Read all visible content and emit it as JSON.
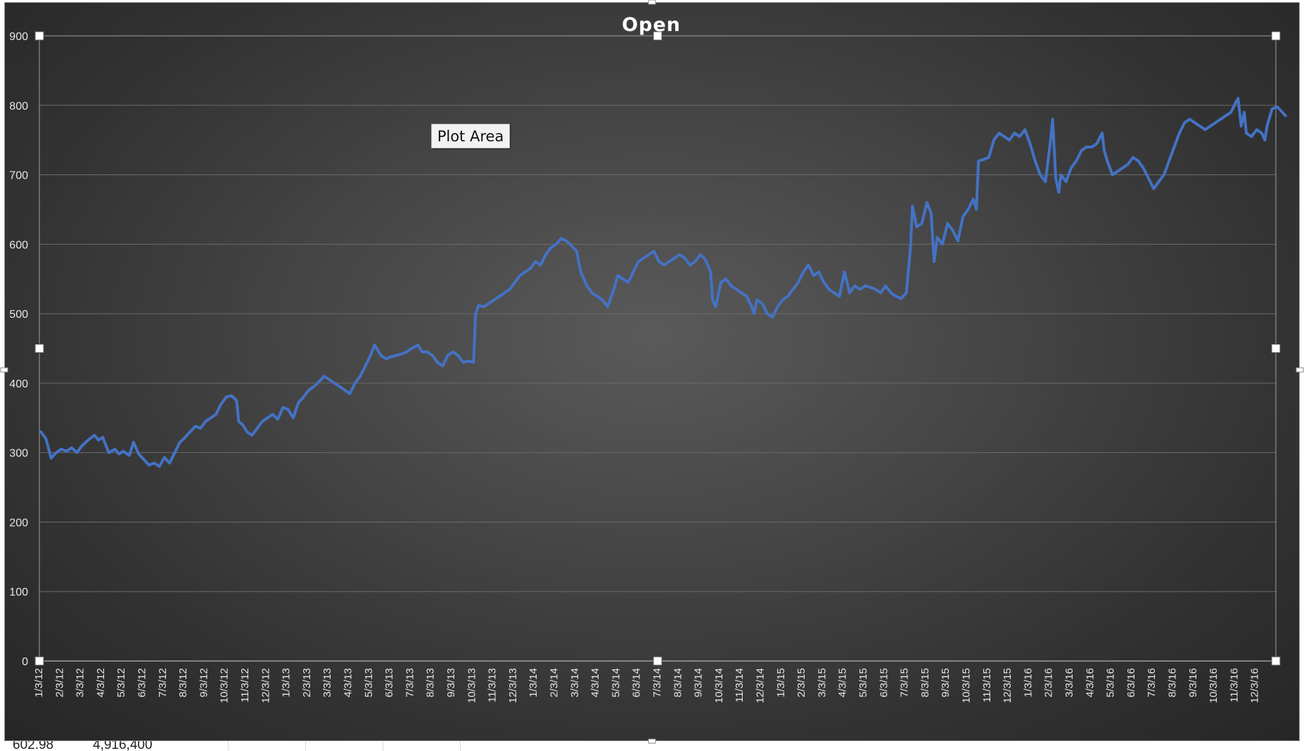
{
  "spreadsheet_peek": {
    "cell_a": "602.98",
    "cell_b": "4,916,400"
  },
  "tooltip": {
    "label": "Plot Area"
  },
  "colors": {
    "line": "#4472c4",
    "background": "#3f3f3f",
    "grid": "#6b6b6b",
    "text": "#ffffff",
    "handle": "#ffffff"
  },
  "chart_data": {
    "type": "line",
    "title": "Open",
    "xlabel": "",
    "ylabel": "",
    "ylim": [
      0,
      900
    ],
    "yticks": [
      0,
      100,
      200,
      300,
      400,
      500,
      600,
      700,
      800,
      900
    ],
    "grid": true,
    "legend": "none",
    "xticks": [
      "1/3/12",
      "2/3/12",
      "3/3/12",
      "4/3/12",
      "5/3/12",
      "6/3/12",
      "7/3/12",
      "8/3/12",
      "9/3/12",
      "10/3/12",
      "11/3/12",
      "12/3/12",
      "1/3/13",
      "2/3/13",
      "3/3/13",
      "4/3/13",
      "5/3/13",
      "6/3/13",
      "7/3/13",
      "8/3/13",
      "9/3/13",
      "10/3/13",
      "11/3/13",
      "12/3/13",
      "1/3/14",
      "2/3/14",
      "3/3/14",
      "4/3/14",
      "5/3/14",
      "6/3/14",
      "7/3/14",
      "8/3/14",
      "9/3/14",
      "10/3/14",
      "11/3/14",
      "12/3/14",
      "1/3/15",
      "2/3/15",
      "3/3/15",
      "4/3/15",
      "5/3/15",
      "6/3/15",
      "7/3/15",
      "8/3/15",
      "9/3/15",
      "10/3/15",
      "11/3/15",
      "12/3/15",
      "1/3/16",
      "2/3/16",
      "3/3/16",
      "4/3/16",
      "5/3/16",
      "6/3/16",
      "7/3/16",
      "8/3/16",
      "9/3/16",
      "10/3/16",
      "11/3/16",
      "12/3/16"
    ],
    "x_range": [
      "1/3/12",
      "12/30/16"
    ],
    "series": [
      {
        "values": [
          [
            0,
            330
          ],
          [
            0.25,
            320
          ],
          [
            0.5,
            292
          ],
          [
            0.75,
            300
          ],
          [
            1,
            305
          ],
          [
            1.25,
            302
          ],
          [
            1.5,
            307
          ],
          [
            1.75,
            300
          ],
          [
            2,
            310
          ],
          [
            2.3,
            318
          ],
          [
            2.6,
            325
          ],
          [
            2.8,
            318
          ],
          [
            3,
            322
          ],
          [
            3.3,
            300
          ],
          [
            3.6,
            305
          ],
          [
            3.8,
            298
          ],
          [
            4,
            302
          ],
          [
            4.3,
            296
          ],
          [
            4.5,
            315
          ],
          [
            4.75,
            298
          ],
          [
            5,
            290
          ],
          [
            5.25,
            282
          ],
          [
            5.5,
            285
          ],
          [
            5.75,
            280
          ],
          [
            6,
            293
          ],
          [
            6.25,
            285
          ],
          [
            6.5,
            300
          ],
          [
            6.75,
            315
          ],
          [
            7,
            322
          ],
          [
            7.25,
            330
          ],
          [
            7.5,
            338
          ],
          [
            7.75,
            335
          ],
          [
            8,
            345
          ],
          [
            8.25,
            350
          ],
          [
            8.5,
            355
          ],
          [
            8.75,
            370
          ],
          [
            9,
            380
          ],
          [
            9.25,
            382
          ],
          [
            9.5,
            375
          ],
          [
            9.6,
            345
          ],
          [
            9.8,
            340
          ],
          [
            10,
            330
          ],
          [
            10.25,
            325
          ],
          [
            10.5,
            335
          ],
          [
            10.75,
            345
          ],
          [
            11,
            350
          ],
          [
            11.25,
            355
          ],
          [
            11.5,
            348
          ],
          [
            11.75,
            365
          ],
          [
            12,
            362
          ],
          [
            12.25,
            350
          ],
          [
            12.5,
            372
          ],
          [
            12.75,
            380
          ],
          [
            13,
            390
          ],
          [
            13.25,
            395
          ],
          [
            13.5,
            402
          ],
          [
            13.75,
            410
          ],
          [
            14,
            405
          ],
          [
            14.25,
            400
          ],
          [
            14.5,
            395
          ],
          [
            14.75,
            390
          ],
          [
            15,
            385
          ],
          [
            15.25,
            400
          ],
          [
            15.5,
            410
          ],
          [
            15.75,
            425
          ],
          [
            16,
            440
          ],
          [
            16.2,
            455
          ],
          [
            16.5,
            440
          ],
          [
            16.75,
            435
          ],
          [
            17,
            438
          ],
          [
            17.25,
            440
          ],
          [
            17.5,
            442
          ],
          [
            17.75,
            445
          ],
          [
            18,
            450
          ],
          [
            18.3,
            455
          ],
          [
            18.5,
            445
          ],
          [
            18.75,
            445
          ],
          [
            19,
            440
          ],
          [
            19.25,
            430
          ],
          [
            19.5,
            425
          ],
          [
            19.75,
            440
          ],
          [
            20,
            445
          ],
          [
            20.25,
            440
          ],
          [
            20.5,
            430
          ],
          [
            20.75,
            432
          ],
          [
            21,
            430
          ],
          [
            21.1,
            500
          ],
          [
            21.25,
            512
          ],
          [
            21.5,
            510
          ],
          [
            21.75,
            515
          ],
          [
            22,
            520
          ],
          [
            22.25,
            525
          ],
          [
            22.5,
            530
          ],
          [
            22.75,
            535
          ],
          [
            23,
            545
          ],
          [
            23.25,
            555
          ],
          [
            23.5,
            560
          ],
          [
            23.75,
            565
          ],
          [
            24,
            575
          ],
          [
            24.25,
            570
          ],
          [
            24.5,
            585
          ],
          [
            24.75,
            595
          ],
          [
            25,
            600
          ],
          [
            25.25,
            608
          ],
          [
            25.5,
            605
          ],
          [
            25.75,
            598
          ],
          [
            26,
            590
          ],
          [
            26.2,
            560
          ],
          [
            26.5,
            540
          ],
          [
            26.75,
            530
          ],
          [
            27,
            525
          ],
          [
            27.25,
            520
          ],
          [
            27.5,
            510
          ],
          [
            27.75,
            530
          ],
          [
            28,
            555
          ],
          [
            28.25,
            550
          ],
          [
            28.5,
            545
          ],
          [
            28.75,
            560
          ],
          [
            29,
            575
          ],
          [
            29.25,
            580
          ],
          [
            29.5,
            585
          ],
          [
            29.75,
            590
          ],
          [
            30,
            575
          ],
          [
            30.25,
            570
          ],
          [
            30.5,
            575
          ],
          [
            30.75,
            580
          ],
          [
            31,
            585
          ],
          [
            31.25,
            580
          ],
          [
            31.5,
            570
          ],
          [
            31.75,
            575
          ],
          [
            32,
            585
          ],
          [
            32.25,
            578
          ],
          [
            32.5,
            560
          ],
          [
            32.6,
            520
          ],
          [
            32.75,
            510
          ],
          [
            33,
            545
          ],
          [
            33.25,
            550
          ],
          [
            33.5,
            540
          ],
          [
            33.75,
            535
          ],
          [
            34,
            530
          ],
          [
            34.25,
            525
          ],
          [
            34.5,
            510
          ],
          [
            34.6,
            500
          ],
          [
            34.75,
            520
          ],
          [
            35,
            515
          ],
          [
            35.25,
            500
          ],
          [
            35.5,
            495
          ],
          [
            35.75,
            510
          ],
          [
            36,
            520
          ],
          [
            36.25,
            525
          ],
          [
            36.5,
            535
          ],
          [
            36.75,
            545
          ],
          [
            37,
            560
          ],
          [
            37.25,
            570
          ],
          [
            37.5,
            555
          ],
          [
            37.75,
            560
          ],
          [
            38,
            545
          ],
          [
            38.25,
            535
          ],
          [
            38.5,
            530
          ],
          [
            38.75,
            525
          ],
          [
            39,
            560
          ],
          [
            39.25,
            530
          ],
          [
            39.5,
            540
          ],
          [
            39.75,
            535
          ],
          [
            40,
            540
          ],
          [
            40.25,
            538
          ],
          [
            40.5,
            535
          ],
          [
            40.75,
            530
          ],
          [
            41,
            540
          ],
          [
            41.25,
            530
          ],
          [
            41.5,
            525
          ],
          [
            41.75,
            522
          ],
          [
            42,
            530
          ],
          [
            42.2,
            595
          ],
          [
            42.3,
            655
          ],
          [
            42.5,
            625
          ],
          [
            42.75,
            630
          ],
          [
            43,
            660
          ],
          [
            43.2,
            645
          ],
          [
            43.35,
            575
          ],
          [
            43.5,
            610
          ],
          [
            43.75,
            600
          ],
          [
            44,
            630
          ],
          [
            44.25,
            620
          ],
          [
            44.5,
            605
          ],
          [
            44.75,
            640
          ],
          [
            45,
            650
          ],
          [
            45.25,
            665
          ],
          [
            45.4,
            650
          ],
          [
            45.5,
            720
          ],
          [
            45.75,
            722
          ],
          [
            46,
            725
          ],
          [
            46.25,
            750
          ],
          [
            46.5,
            760
          ],
          [
            46.75,
            755
          ],
          [
            47,
            750
          ],
          [
            47.25,
            760
          ],
          [
            47.5,
            755
          ],
          [
            47.75,
            765
          ],
          [
            48,
            745
          ],
          [
            48.25,
            720
          ],
          [
            48.5,
            700
          ],
          [
            48.75,
            690
          ],
          [
            49,
            750
          ],
          [
            49.1,
            780
          ],
          [
            49.25,
            695
          ],
          [
            49.4,
            675
          ],
          [
            49.5,
            700
          ],
          [
            49.75,
            690
          ],
          [
            50,
            710
          ],
          [
            50.25,
            720
          ],
          [
            50.5,
            735
          ],
          [
            50.75,
            740
          ],
          [
            51,
            740
          ],
          [
            51.25,
            745
          ],
          [
            51.5,
            760
          ],
          [
            51.6,
            735
          ],
          [
            51.75,
            720
          ],
          [
            52,
            700
          ],
          [
            52.25,
            705
          ],
          [
            52.5,
            710
          ],
          [
            52.75,
            715
          ],
          [
            53,
            725
          ],
          [
            53.25,
            720
          ],
          [
            53.5,
            710
          ],
          [
            53.75,
            695
          ],
          [
            54,
            680
          ],
          [
            54.25,
            690
          ],
          [
            54.5,
            700
          ],
          [
            54.75,
            720
          ],
          [
            55,
            740
          ],
          [
            55.25,
            760
          ],
          [
            55.5,
            775
          ],
          [
            55.75,
            780
          ],
          [
            56,
            775
          ],
          [
            56.25,
            770
          ],
          [
            56.5,
            765
          ],
          [
            56.75,
            770
          ],
          [
            57,
            775
          ],
          [
            57.25,
            780
          ],
          [
            57.5,
            785
          ],
          [
            57.75,
            790
          ],
          [
            58,
            805
          ],
          [
            58.1,
            810
          ],
          [
            58.25,
            770
          ],
          [
            58.4,
            790
          ],
          [
            58.5,
            760
          ],
          [
            58.75,
            755
          ],
          [
            59,
            765
          ],
          [
            59.25,
            760
          ],
          [
            59.4,
            750
          ],
          [
            59.5,
            770
          ],
          [
            59.75,
            795
          ],
          [
            60,
            798
          ],
          [
            60.25,
            790
          ],
          [
            60.4,
            785
          ]
        ]
      }
    ]
  }
}
